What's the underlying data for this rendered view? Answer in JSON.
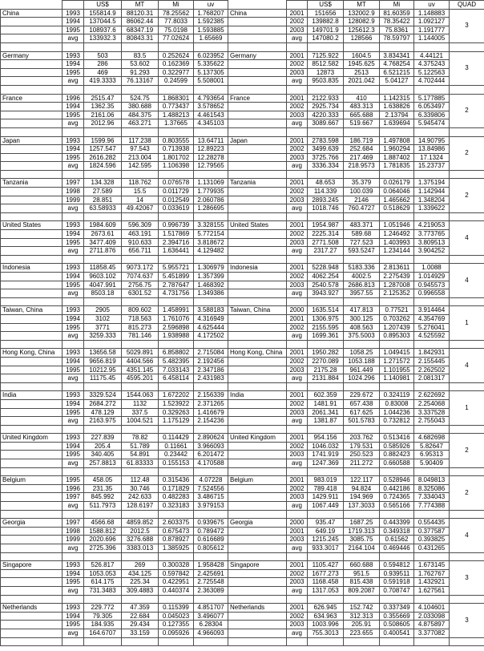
{
  "table": {
    "headers": {
      "us": "US$",
      "mt": "MT",
      "mi": "Mi",
      "uv": "uv",
      "quad": "QUAD"
    },
    "countries": [
      {
        "name": "China",
        "quad": "3",
        "left": [
          [
            "1993",
            "155814.9",
            "88120.31",
            "78.25562",
            "1.768207"
          ],
          [
            "1994",
            "137044.5",
            "86062.44",
            "77.8033",
            "1.592385"
          ],
          [
            "1995",
            "108937.6",
            "68347.19",
            "75.0198",
            "1.593885"
          ],
          [
            "avg",
            "133932.3",
            "80843.31",
            "77.02624",
            "1.65669"
          ]
        ],
        "right": [
          [
            "2001",
            "151656",
            "132002.9",
            "81.60359",
            "1.148883"
          ],
          [
            "2002",
            "139882.8",
            "128082.9",
            "78.35422",
            "1.092127"
          ],
          [
            "2003",
            "149701.9",
            "125612.3",
            "75.8361",
            "1.191777"
          ],
          [
            "avg",
            "147080.2",
            "128566",
            "78.59797",
            "1.144005"
          ]
        ]
      },
      {
        "name": "Germany",
        "quad": "3",
        "left": [
          [
            "1993",
            "503",
            "83.5",
            "0.252624",
            "6.023952"
          ],
          [
            "1994",
            "286",
            "53.602",
            "0.162369",
            "5.335622"
          ],
          [
            "1995",
            "469",
            "91.293",
            "0.322977",
            "5.137305"
          ],
          [
            "avg",
            "419.3333",
            "76.13167",
            "0.24599",
            "5.508001"
          ]
        ],
        "right": [
          [
            "2001",
            "7125.922",
            "1604.5",
            "3.834341",
            "4.44121"
          ],
          [
            "2002",
            "8512.582",
            "1945.625",
            "4.768254",
            "4.375243"
          ],
          [
            "2003",
            "12873",
            "2513",
            "6.521215",
            "5.122563"
          ],
          [
            "avg",
            "9503.835",
            "2021.042",
            "5.04127",
            "4.702444"
          ]
        ]
      },
      {
        "name": "France",
        "quad": "2",
        "left": [
          [
            "1996",
            "2515.47",
            "524.75",
            "1.868301",
            "4.793654"
          ],
          [
            "1994",
            "1362.35",
            "380.688",
            "0.773437",
            "3.578652"
          ],
          [
            "1995",
            "2161.06",
            "484.375",
            "1.488213",
            "4.461543"
          ],
          [
            "avg",
            "2012.96",
            "463.271",
            "1.37665",
            "4.345103"
          ]
        ],
        "right": [
          [
            "2001",
            "2122.933",
            "410",
            "1.142315",
            "5.177885"
          ],
          [
            "2002",
            "2925.734",
            "483.313",
            "1.638826",
            "6.053497"
          ],
          [
            "2003",
            "4220.333",
            "665.688",
            "2.13794",
            "6.339806"
          ],
          [
            "avg",
            "3089.667",
            "519.667",
            "1.639694",
            "5.945474"
          ]
        ]
      },
      {
        "name": "Japan",
        "quad": "2",
        "left": [
          [
            "1993",
            "1599.96",
            "117.238",
            "0.803555",
            "13.64711"
          ],
          [
            "1994",
            "1257.547",
            "97.543",
            "0.713938",
            "12.89223"
          ],
          [
            "1995",
            "2616.282",
            "213.004",
            "1.801702",
            "12.28278"
          ],
          [
            "avg",
            "1824.596",
            "142.595",
            "1.106398",
            "12.79565"
          ]
        ],
        "right": [
          [
            "2001",
            "2783.598",
            "186.719",
            "1.497808",
            "14.90795"
          ],
          [
            "2002",
            "3499.639",
            "252.684",
            "1.960294",
            "13.84986"
          ],
          [
            "2003",
            "3725.766",
            "217.469",
            "1.887402",
            "17.1324"
          ],
          [
            "avg",
            "3336.334",
            "218.9573",
            "1.781835",
            "15.23737"
          ]
        ]
      },
      {
        "name": "Tanzania",
        "quad": "2",
        "left": [
          [
            "1997",
            "134.328",
            "118.762",
            "0.076578",
            "1.131069"
          ],
          [
            "1998",
            "27.589",
            "15.5",
            "0.011729",
            "1.779935"
          ],
          [
            "1999",
            "28.851",
            "14",
            "0.012549",
            "2.060786"
          ],
          [
            "avg",
            "63.58933",
            "49.42067",
            "0.033619",
            "1.286695"
          ]
        ],
        "right": [
          [
            "2001",
            "48.653",
            "35.379",
            "0.026179",
            "1.375194"
          ],
          [
            "2002",
            "114.339",
            "100.039",
            "0.064046",
            "1.142944"
          ],
          [
            "2003",
            "2893.245",
            "2146",
            "1.465662",
            "1.348204"
          ],
          [
            "avg",
            "1018.746",
            "760.4727",
            "0.518629",
            "1.339622"
          ]
        ]
      },
      {
        "name": "United States",
        "quad": "4",
        "left": [
          [
            "1993",
            "1984.609",
            "596.309",
            "0.996739",
            "3.328155"
          ],
          [
            "1994",
            "2673.61",
            "463.191",
            "1.517869",
            "5.772154"
          ],
          [
            "1995",
            "3477.409",
            "910.633",
            "2.394716",
            "3.818672"
          ],
          [
            "avg",
            "2711.876",
            "656.711",
            "1.636441",
            "4.129482"
          ]
        ],
        "right": [
          [
            "2001",
            "1954.987",
            "483.371",
            "1.051946",
            "4.219053"
          ],
          [
            "2002",
            "2225.314",
            "589.68",
            "1.246492",
            "3.773765"
          ],
          [
            "2003",
            "2771.508",
            "727.523",
            "1.403993",
            "3.809513"
          ],
          [
            "avg",
            "2317.27",
            "593.5247",
            "1.234144",
            "3.904252"
          ]
        ]
      },
      {
        "name": "Indonesia",
        "quad": "4",
        "left": [
          [
            "1993",
            "11858.45",
            "9073.172",
            "5.955721",
            "1.306979"
          ],
          [
            "1994",
            "9603.102",
            "7074.637",
            "5.451899",
            "1.357399"
          ],
          [
            "1995",
            "4047.991",
            "2756.75",
            "2.787647",
            "1.468392"
          ],
          [
            "avg",
            "8503.18",
            "6301.52",
            "4.731756",
            "1.349386"
          ]
        ],
        "right": [
          [
            "2001",
            "5228.948",
            "5183.336",
            "2.813611",
            "1.0088"
          ],
          [
            "2002",
            "4062.254",
            "4002.5",
            "2.275439",
            "1.014929"
          ],
          [
            "2003",
            "2540.578",
            "2686.813",
            "1.287008",
            "0.945573"
          ],
          [
            "avg",
            "3943.927",
            "3957.55",
            "2.125352",
            "0.996558"
          ]
        ]
      },
      {
        "name": "Taiwan, China",
        "quad": "1",
        "left": [
          [
            "1993",
            "2905",
            "809.602",
            "1.458991",
            "3.588183"
          ],
          [
            "1994",
            "3102",
            "718.563",
            "1.761076",
            "4.316949"
          ],
          [
            "1995",
            "3771",
            "815.273",
            "2.596898",
            "4.625444"
          ],
          [
            "avg",
            "3259.333",
            "781.146",
            "1.938988",
            "4.172502"
          ]
        ],
        "right": [
          [
            "2000",
            "1635.514",
            "417.813",
            "0.77521",
            "3.914464"
          ],
          [
            "2001",
            "1306.975",
            "300.125",
            "0.703262",
            "4.354769"
          ],
          [
            "2002",
            "2155.595",
            "408.563",
            "1.207439",
            "5.276041"
          ],
          [
            "avg",
            "1699.361",
            "375.5003",
            "0.895303",
            "4.525592"
          ]
        ]
      },
      {
        "name": "Hong Kong, China",
        "quad": "4",
        "left": [
          [
            "1993",
            "13656.58",
            "5029.891",
            "6.858802",
            "2.715084"
          ],
          [
            "1994",
            "9656.819",
            "4404.566",
            "5.482395",
            "2.192456"
          ],
          [
            "1995",
            "10212.95",
            "4351.145",
            "7.033143",
            "2.347186"
          ],
          [
            "avg",
            "11175.45",
            "4595.201",
            "6.458114",
            "2.431983"
          ]
        ],
        "right": [
          [
            "2001",
            "1950.282",
            "1058.25",
            "1.049415",
            "1.842931"
          ],
          [
            "2002",
            "2270.089",
            "1053.188",
            "1.271572",
            "2.155445"
          ],
          [
            "2003",
            "2175.28",
            "961.449",
            "1.101955",
            "2.262502"
          ],
          [
            "avg",
            "2131.884",
            "1024.296",
            "1.140981",
            "2.081317"
          ]
        ]
      },
      {
        "name": "India",
        "quad": "1",
        "left": [
          [
            "1993",
            "3329.524",
            "1544.063",
            "1.672202",
            "2.156339"
          ],
          [
            "1994",
            "2684.272",
            "1132",
            "1.523922",
            "2.371265"
          ],
          [
            "1995",
            "478.129",
            "337.5",
            "0.329263",
            "1.416679"
          ],
          [
            "avg",
            "2163.975",
            "1004.521",
            "1.175129",
            "2.154236"
          ]
        ],
        "right": [
          [
            "2001",
            "602.359",
            "229.672",
            "0.324119",
            "2.622692"
          ],
          [
            "2002",
            "1481.91",
            "657.438",
            "0.83008",
            "2.254068"
          ],
          [
            "2003",
            "2061.341",
            "617.625",
            "1.044236",
            "3.337528"
          ],
          [
            "avg",
            "1381.87",
            "501.5783",
            "0.732812",
            "2.755043"
          ]
        ]
      },
      {
        "name": "United Kingdom",
        "quad": "2",
        "left": [
          [
            "1993",
            "227.839",
            "78.82",
            "0.114429",
            "2.890624"
          ],
          [
            "1994",
            "205.4",
            "51.789",
            "0.11661",
            "3.966093"
          ],
          [
            "1995",
            "340.405",
            "54.891",
            "0.23442",
            "6.201472"
          ],
          [
            "avg",
            "257.8813",
            "61.83333",
            "0.155153",
            "4.170588"
          ]
        ],
        "right": [
          [
            "2001",
            "954.156",
            "203.762",
            "0.513416",
            "4.682698"
          ],
          [
            "2002",
            "1046.032",
            "179.531",
            "0.585926",
            "5.82647"
          ],
          [
            "2003",
            "1741.919",
            "250.523",
            "0.882423",
            "6.95313"
          ],
          [
            "avg",
            "1247.369",
            "211.272",
            "0.660588",
            "5.90409"
          ]
        ]
      },
      {
        "name": "Belgium",
        "quad": "2",
        "left": [
          [
            "1995",
            "458.05",
            "112.48",
            "0.315436",
            "4.07228"
          ],
          [
            "1996",
            "231.35",
            "30.746",
            "0.171829",
            "7.524556"
          ],
          [
            "1997",
            "845.992",
            "242.633",
            "0.482283",
            "3.486715"
          ],
          [
            "avg",
            "511.7973",
            "128.6197",
            "0.323183",
            "3.979153"
          ]
        ],
        "right": [
          [
            "2001",
            "983.019",
            "122.117",
            "0.528946",
            "8.049813"
          ],
          [
            "2002",
            "789.418",
            "94.824",
            "0.442186",
            "8.325086"
          ],
          [
            "2003",
            "1429.911",
            "194.969",
            "0.724365",
            "7.334043"
          ],
          [
            "avg",
            "1067.449",
            "137.3033",
            "0.565166",
            "7.774388"
          ]
        ]
      },
      {
        "name": "Georgia",
        "quad": "4",
        "left": [
          [
            "1997",
            "4566.68",
            "4859.852",
            "2.603375",
            "0.939675"
          ],
          [
            "1998",
            "1588.812",
            "2012.5",
            "0.675473",
            "0.789472"
          ],
          [
            "1999",
            "2020.696",
            "3276.688",
            "0.878927",
            "0.616689"
          ],
          [
            "avg",
            "2725.396",
            "3383.013",
            "1.385925",
            "0.805612"
          ]
        ],
        "right": [
          [
            "2000",
            "935.47",
            "1687.25",
            "0.443399",
            "0.554435"
          ],
          [
            "2001",
            "649.19",
            "1719.313",
            "0.349318",
            "0.377587"
          ],
          [
            "2003",
            "1215.245",
            "3085.75",
            "0.61562",
            "0.393825"
          ],
          [
            "avg",
            "933.3017",
            "2164.104",
            "0.469446",
            "0.431265"
          ]
        ]
      },
      {
        "name": "Singapore",
        "quad": "3",
        "left": [
          [
            "1993",
            "526.817",
            "269",
            "0.300328",
            "1.958428"
          ],
          [
            "1994",
            "1053.053",
            "434.125",
            "0.597842",
            "2.425691"
          ],
          [
            "1995",
            "614.175",
            "225.34",
            "0.422951",
            "2.725548"
          ],
          [
            "avg",
            "731.3483",
            "309.4883",
            "0.440374",
            "2.363089"
          ]
        ],
        "right": [
          [
            "2001",
            "1105.427",
            "660.688",
            "0.594812",
            "1.673145"
          ],
          [
            "2002",
            "1677.273",
            "951.5",
            "0.939511",
            "1.762767"
          ],
          [
            "2003",
            "1168.458",
            "815.438",
            "0.591918",
            "1.432921"
          ],
          [
            "avg",
            "1317.053",
            "809.2087",
            "0.708747",
            "1.627561"
          ]
        ]
      },
      {
        "name": "Netherlands",
        "quad": "3",
        "left": [
          [
            "1993",
            "229.772",
            "47.359",
            "0.115399",
            "4.851707"
          ],
          [
            "1994",
            "79.305",
            "22.684",
            "0.045023",
            "3.496077"
          ],
          [
            "1995",
            "184.935",
            "29.434",
            "0.127355",
            "6.28304"
          ],
          [
            "avg",
            "164.6707",
            "33.159",
            "0.095926",
            "4.966093"
          ]
        ],
        "right": [
          [
            "2001",
            "626.945",
            "152.742",
            "0.337349",
            "4.104601"
          ],
          [
            "2002",
            "634.963",
            "312.313",
            "0.355669",
            "2.033098"
          ],
          [
            "2003",
            "1003.996",
            "205.91",
            "0.508605",
            "4.875897"
          ],
          [
            "avg",
            "755.3013",
            "223.655",
            "0.400541",
            "3.377082"
          ]
        ]
      }
    ]
  }
}
